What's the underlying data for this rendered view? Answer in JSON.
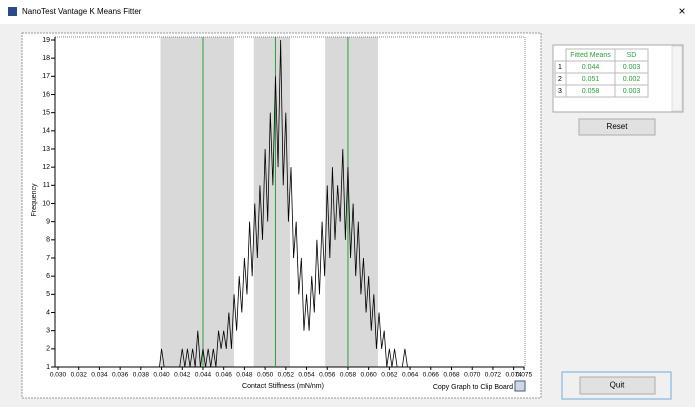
{
  "window": {
    "title": "NanoTest Vantage K Means Fitter",
    "close": "×"
  },
  "chart_data": {
    "type": "line",
    "xlabel": "Contact Stiffness (mN/nm)",
    "ylabel": "Frequency",
    "color": "#000000",
    "fit_color": "#2e9e3e",
    "band_color": "#d9d9d9",
    "bands": [
      [
        0.0399,
        0.047
      ],
      [
        0.0489,
        0.0524
      ],
      [
        0.0558,
        0.0609
      ]
    ],
    "xlim": [
      0.03,
      0.075
    ],
    "ylim": [
      1,
      19
    ],
    "xticks": [
      {
        "value": 0.03,
        "label": "0.030"
      },
      0.032,
      0.034,
      0.036,
      0.038,
      {
        "value": 0.04,
        "label": "0.040"
      },
      0.042,
      0.044,
      0.046,
      0.048,
      {
        "value": 0.05,
        "label": "0.050"
      },
      0.052,
      0.054,
      0.056,
      0.058,
      {
        "value": 0.06,
        "label": "0.060"
      },
      0.062,
      0.064,
      0.066,
      0.068,
      {
        "value": 0.07,
        "label": "0.070"
      },
      0.072,
      0.074,
      0.075
    ],
    "yticks": [
      1,
      2,
      3,
      4,
      5,
      6,
      7,
      8,
      9,
      10,
      11,
      12,
      13,
      14,
      15,
      16,
      17,
      18,
      19
    ],
    "x": [
      0.03,
      0.0398,
      0.04,
      0.04025,
      0.0405,
      0.04075,
      0.041,
      0.04125,
      0.0415,
      0.04175,
      0.042,
      0.04225,
      0.0425,
      0.04275,
      0.043,
      0.04325,
      0.0435,
      0.04375,
      0.044,
      0.04425,
      0.0445,
      0.04475,
      0.045,
      0.04525,
      0.0455,
      0.04575,
      0.046,
      0.04625,
      0.0465,
      0.04675,
      0.047,
      0.04725,
      0.0475,
      0.04775,
      0.048,
      0.04825,
      0.0485,
      0.04875,
      0.049,
      0.04925,
      0.0495,
      0.04975,
      0.05,
      0.05025,
      0.0505,
      0.05075,
      0.051,
      0.05125,
      0.0515,
      0.05175,
      0.052,
      0.05225,
      0.0525,
      0.05275,
      0.053,
      0.05325,
      0.0535,
      0.05375,
      0.054,
      0.05425,
      0.0545,
      0.05475,
      0.055,
      0.05525,
      0.0555,
      0.05575,
      0.056,
      0.05625,
      0.0565,
      0.05675,
      0.057,
      0.05725,
      0.0575,
      0.05775,
      0.058,
      0.05825,
      0.0585,
      0.05875,
      0.059,
      0.05925,
      0.0595,
      0.05975,
      0.06,
      0.06025,
      0.0605,
      0.06075,
      0.061,
      0.06125,
      0.0615,
      0.06175,
      0.062,
      0.06225,
      0.0625,
      0.06275,
      0.063,
      0.06325,
      0.0635,
      0.06375,
      0.064,
      0.06425,
      0.0645,
      0.06475,
      0.065
    ],
    "values": [
      1,
      1,
      2,
      1,
      1,
      1,
      1,
      1,
      1,
      1,
      2,
      1,
      2,
      1,
      2,
      1,
      3,
      1,
      2,
      1,
      2,
      1,
      2,
      1,
      3,
      2,
      3,
      2,
      4,
      2,
      5,
      3,
      6,
      4,
      7,
      5,
      9,
      6,
      10,
      7,
      11,
      8,
      13,
      9,
      15,
      11,
      17,
      12,
      19,
      11,
      15,
      9,
      12,
      7,
      9,
      5,
      7,
      3,
      5,
      3,
      6,
      4,
      8,
      5,
      9,
      6,
      11,
      7,
      12,
      8,
      11,
      9,
      13,
      8,
      12,
      7,
      10,
      6,
      9,
      5,
      7,
      4,
      6,
      3,
      5,
      2,
      4,
      2,
      3,
      1,
      2,
      1,
      2,
      1,
      1,
      1,
      2,
      1,
      1,
      1,
      1,
      1,
      1
    ]
  },
  "copy_link": "Copy Graph to Clip Board",
  "fit_table": {
    "headers": [
      "Fitted Means",
      "SD"
    ],
    "rows": [
      [
        1,
        0.044,
        0.003
      ],
      [
        2,
        0.051,
        0.002
      ],
      [
        3,
        0.058,
        0.003
      ]
    ]
  },
  "buttons": {
    "reset": "Reset",
    "quit": "Quit"
  }
}
